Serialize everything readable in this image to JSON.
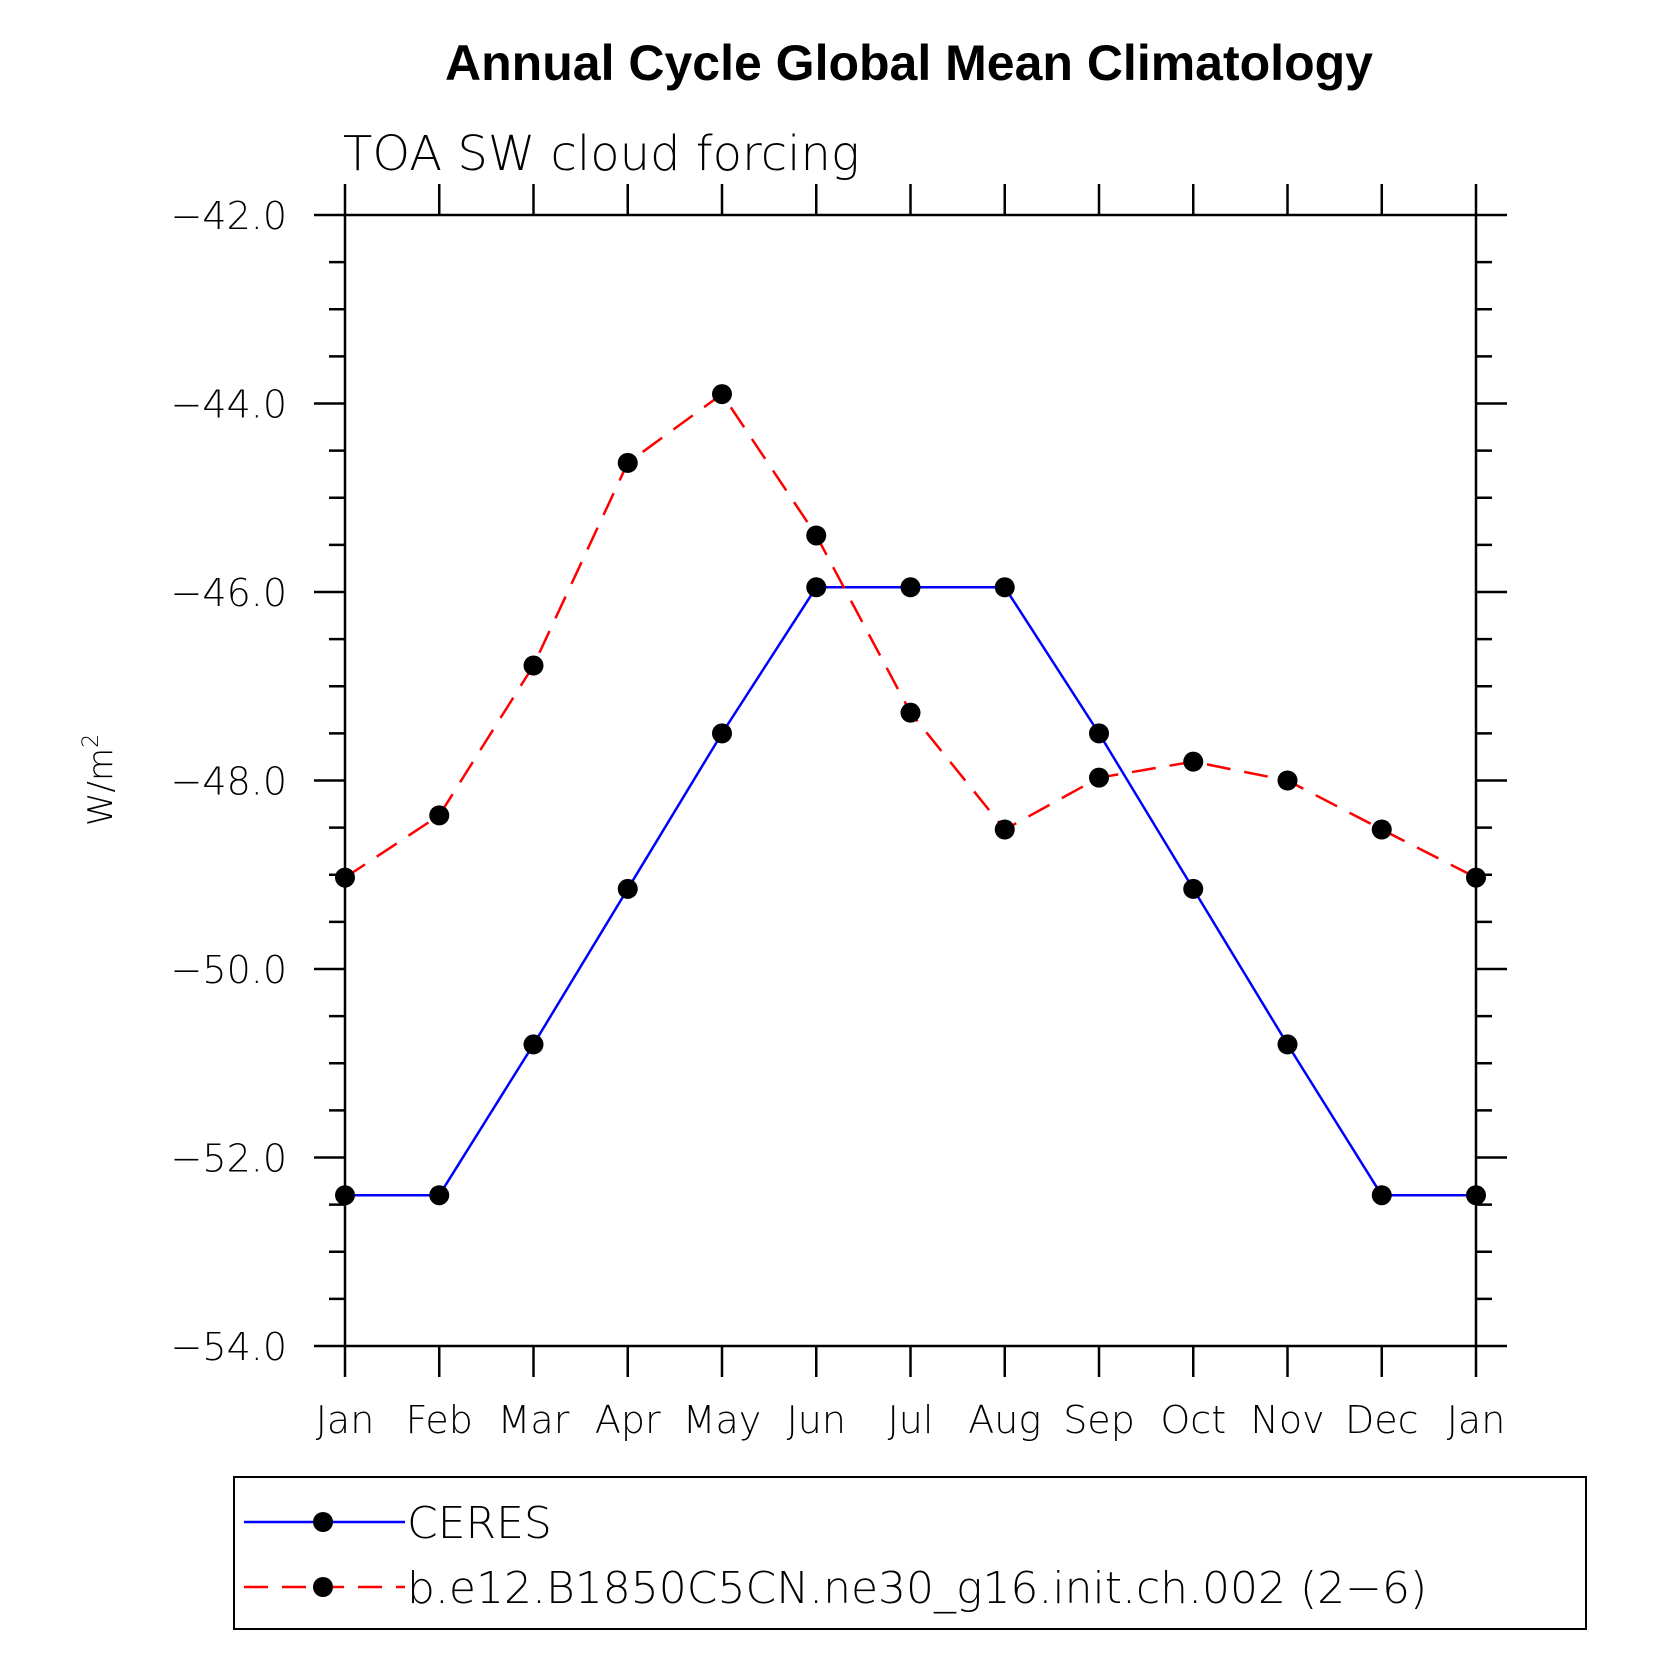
{
  "chart_data": {
    "type": "line",
    "title": "Annual Cycle Global Mean Climatology",
    "subtitle": "TOA SW cloud forcing",
    "ylabel": "W/m",
    "ylabel_superscript": "2",
    "xlabel": "",
    "categories": [
      "Jan",
      "Feb",
      "Mar",
      "Apr",
      "May",
      "Jun",
      "Jul",
      "Aug",
      "Sep",
      "Oct",
      "Nov",
      "Dec",
      "Jan"
    ],
    "ylim": [
      -54.0,
      -42.0
    ],
    "yticks": [
      -42.0,
      -44.0,
      -46.0,
      -48.0,
      -50.0,
      -52.0,
      -54.0
    ],
    "ytick_labels": [
      "−42.0",
      "−44.0",
      "−46.0",
      "−48.0",
      "−50.0",
      "−52.0",
      "−54.0"
    ],
    "grid": false,
    "legend_placement": "bottom",
    "series": [
      {
        "name": "CERES",
        "color": "#0000ff",
        "dash": "solid",
        "marker": "filled-circle",
        "values": [
          -52.4,
          -52.4,
          -50.8,
          -49.15,
          -47.5,
          -45.95,
          -45.95,
          -45.95,
          -47.5,
          -49.15,
          -50.8,
          -52.4,
          -52.4
        ]
      },
      {
        "name": "b.e12.B1850C5CN.ne30_g16.init.ch.002 (2−6)",
        "color": "#ff0000",
        "dash": "dashed",
        "marker": "filled-circle",
        "values": [
          -49.03,
          -48.37,
          -46.78,
          -44.63,
          -43.9,
          -45.4,
          -47.28,
          -48.52,
          -47.97,
          -47.8,
          -48.0,
          -48.52,
          -49.03
        ]
      }
    ]
  }
}
